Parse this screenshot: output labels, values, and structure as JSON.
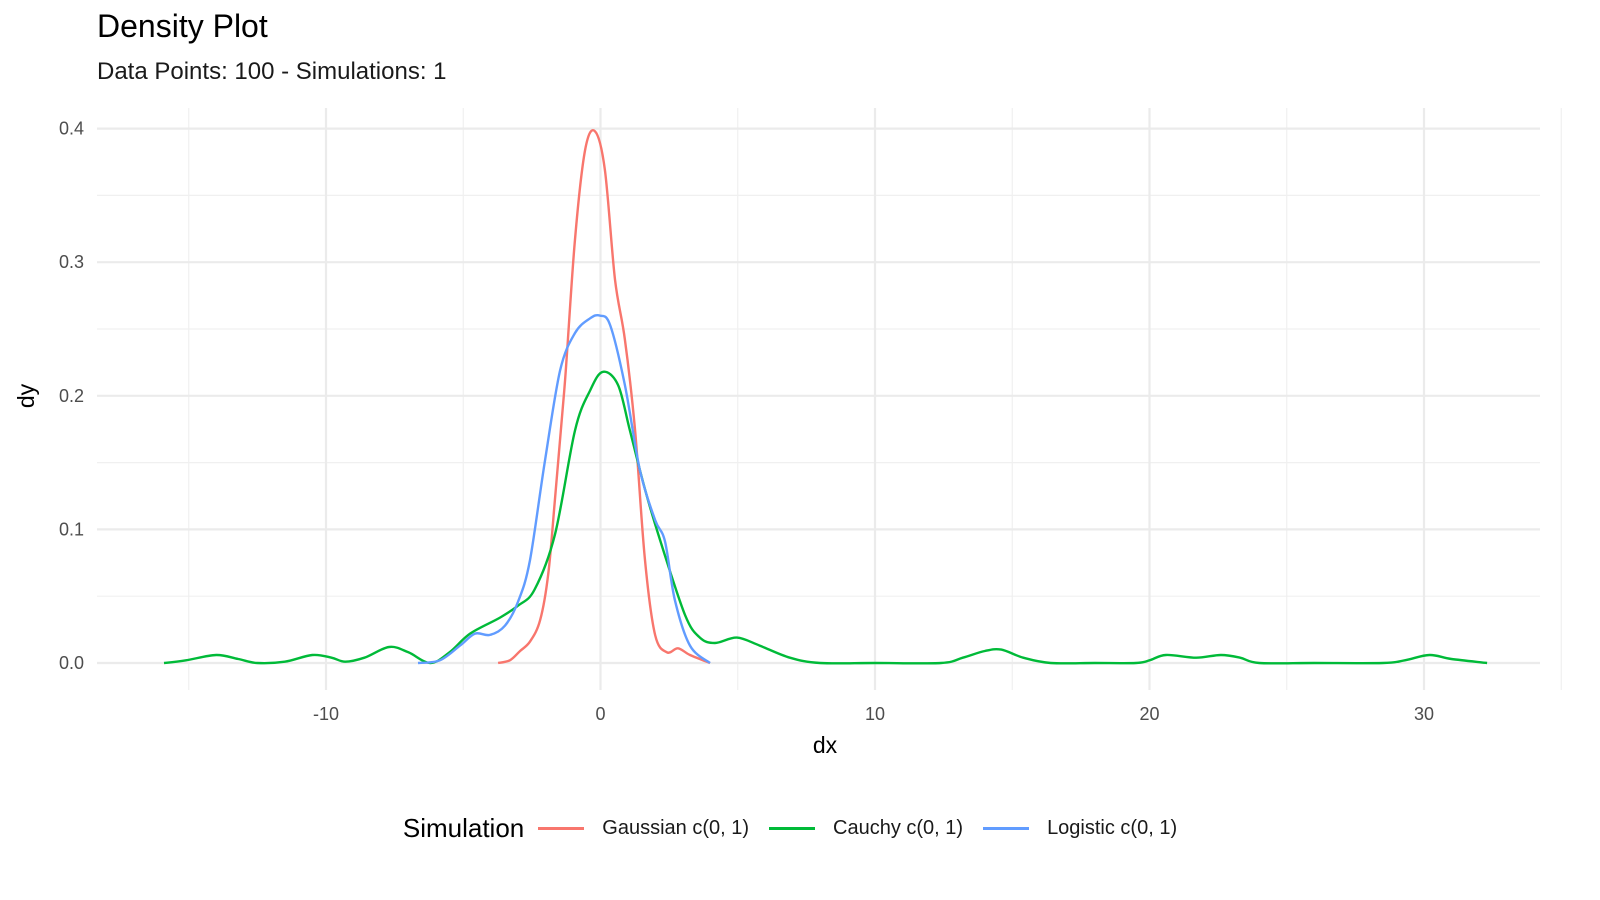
{
  "title": "Density Plot",
  "subtitle": "Data Points: 100 - Simulations: 1",
  "legend": {
    "title": "Simulation",
    "items": [
      {
        "label": "Gaussian c(0, 1)",
        "color": "#F8766D"
      },
      {
        "label": "Cauchy c(0, 1)",
        "color": "#00BA38"
      },
      {
        "label": "Logistic c(0, 1)",
        "color": "#619CFF"
      }
    ]
  },
  "chart_data": {
    "type": "line",
    "title": "Density Plot",
    "subtitle": "Data Points: 100 - Simulations: 1",
    "xlabel": "dx",
    "ylabel": "dy",
    "xlim": [
      -17.5,
      34.5
    ],
    "ylim": [
      -0.02,
      0.42
    ],
    "x_ticks": [
      -10,
      0,
      10,
      20,
      30
    ],
    "y_ticks": [
      0.0,
      0.1,
      0.2,
      0.3,
      0.4
    ],
    "y_tick_labels": [
      "0.0",
      "0.1",
      "0.2",
      "0.3",
      "0.4"
    ],
    "grid": true,
    "legend_position": "bottom",
    "series": [
      {
        "name": "Gaussian c(0, 1)",
        "color": "#F8766D",
        "x": [
          -3.73,
          -3.3,
          -2.93,
          -2.57,
          -2.2,
          -1.9,
          -1.66,
          -1.29,
          -0.93,
          -0.56,
          -0.2,
          0.16,
          0.53,
          0.89,
          1.26,
          1.62,
          1.99,
          2.42,
          2.82,
          3.26,
          3.99
        ],
        "y": [
          0.0,
          0.002,
          0.009,
          0.016,
          0.032,
          0.067,
          0.122,
          0.212,
          0.317,
          0.384,
          0.398,
          0.369,
          0.287,
          0.242,
          0.174,
          0.077,
          0.021,
          0.008,
          0.011,
          0.006,
          0.0
        ]
      },
      {
        "name": "Cauchy c(0, 1)",
        "color": "#00BA38",
        "x": [
          -15.9,
          -15.1,
          -14.0,
          -13.2,
          -12.5,
          -11.5,
          -10.5,
          -9.8,
          -9.3,
          -8.6,
          -7.7,
          -7.0,
          -6.2,
          -5.5,
          -4.75,
          -3.66,
          -3.0,
          -2.4,
          -1.66,
          -0.93,
          -0.38,
          0.09,
          0.64,
          1.07,
          1.62,
          2.17,
          3.08,
          3.62,
          4.17,
          4.97,
          5.8,
          6.9,
          8.0,
          10.0,
          12.4,
          13.2,
          14.0,
          14.6,
          15.4,
          16.4,
          18.0,
          19.5,
          20.0,
          20.6,
          21.7,
          22.6,
          23.3,
          24.0,
          26.0,
          28.5,
          29.3,
          30.2,
          31.0,
          32.3
        ],
        "y": [
          0.0,
          0.002,
          0.006,
          0.003,
          0.0,
          0.001,
          0.006,
          0.004,
          0.001,
          0.004,
          0.012,
          0.008,
          0.0,
          0.008,
          0.022,
          0.034,
          0.043,
          0.055,
          0.096,
          0.174,
          0.204,
          0.218,
          0.208,
          0.174,
          0.13,
          0.092,
          0.036,
          0.019,
          0.015,
          0.019,
          0.013,
          0.004,
          0.0,
          0.0,
          0.0,
          0.004,
          0.009,
          0.01,
          0.004,
          0.0,
          0.0,
          0.0,
          0.002,
          0.006,
          0.004,
          0.006,
          0.004,
          0.0,
          0.0,
          0.0,
          0.002,
          0.006,
          0.003,
          0.0
        ]
      },
      {
        "name": "Logistic c(0, 1)",
        "color": "#619CFF",
        "x": [
          -6.65,
          -5.85,
          -5.12,
          -4.57,
          -4.03,
          -3.48,
          -3.0,
          -2.57,
          -2.02,
          -1.47,
          -0.93,
          -0.38,
          -0.02,
          0.35,
          0.89,
          1.44,
          1.99,
          2.35,
          2.71,
          3.26,
          3.99
        ],
        "y": [
          0.0,
          0.002,
          0.013,
          0.022,
          0.021,
          0.028,
          0.046,
          0.077,
          0.152,
          0.219,
          0.247,
          0.258,
          0.26,
          0.253,
          0.208,
          0.144,
          0.107,
          0.091,
          0.047,
          0.013,
          0.0
        ]
      }
    ]
  }
}
